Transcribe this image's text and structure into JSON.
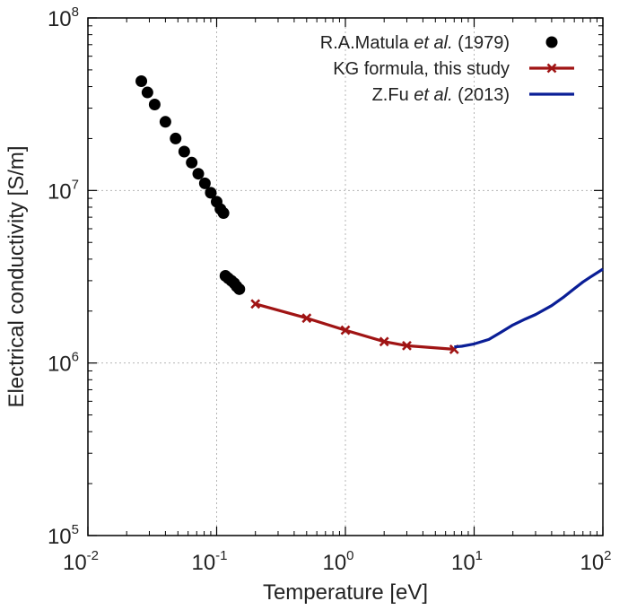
{
  "chart_data": {
    "type": "scatter",
    "title": "",
    "xlabel": "Temperature [eV]",
    "ylabel": "Electrical conductivity [S/m]",
    "xscale": "log",
    "yscale": "log",
    "xlim": [
      0.01,
      100
    ],
    "ylim": [
      100000,
      100000000
    ],
    "grid": true,
    "legend_position": "top-right",
    "x_ticks": [
      {
        "base": "10",
        "exp": "-2",
        "value": 0.01
      },
      {
        "base": "10",
        "exp": "-1",
        "value": 0.1
      },
      {
        "base": "10",
        "exp": "0",
        "value": 1
      },
      {
        "base": "10",
        "exp": "1",
        "value": 10
      },
      {
        "base": "10",
        "exp": "2",
        "value": 100
      }
    ],
    "y_ticks": [
      {
        "base": "10",
        "exp": "5",
        "value": 100000
      },
      {
        "base": "10",
        "exp": "6",
        "value": 1000000
      },
      {
        "base": "10",
        "exp": "7",
        "value": 10000000
      },
      {
        "base": "10",
        "exp": "8",
        "value": 100000000
      }
    ],
    "series": [
      {
        "name": "R.A.Matula et al. (1979)",
        "legend_parts": [
          {
            "text": "R.A.Matula ",
            "italic": false
          },
          {
            "text": "et al.",
            "italic": true
          },
          {
            "text": " (1979)",
            "italic": false
          }
        ],
        "style": "points",
        "color": "#000000",
        "x": [
          0.026,
          0.029,
          0.033,
          0.04,
          0.048,
          0.056,
          0.064,
          0.072,
          0.081,
          0.09,
          0.1,
          0.107,
          0.113,
          0.117,
          0.123,
          0.13,
          0.137,
          0.143,
          0.15
        ],
        "y": [
          43000000,
          37000000,
          31500000,
          25000000,
          20000000,
          16800000,
          14500000,
          12500000,
          11000000,
          9700000,
          8600000,
          7800000,
          7400000,
          3200000,
          3100000,
          3000000,
          2900000,
          2780000,
          2680000
        ]
      },
      {
        "name": "KG formula, this study",
        "legend_parts": [
          {
            "text": "KG formula, this study",
            "italic": false
          }
        ],
        "style": "line-x-markers",
        "color": "#a01414",
        "x": [
          0.2,
          0.5,
          1,
          2,
          3,
          7
        ],
        "y": [
          2200000,
          1820000,
          1550000,
          1330000,
          1260000,
          1200000
        ]
      },
      {
        "name": "Z.Fu et al. (2013)",
        "legend_parts": [
          {
            "text": "Z.Fu ",
            "italic": false
          },
          {
            "text": "et al.",
            "italic": true
          },
          {
            "text": " (2013)",
            "italic": false
          }
        ],
        "style": "line",
        "color": "#0a1e96",
        "x": [
          7,
          8,
          10,
          13,
          16,
          20,
          25,
          30,
          40,
          50,
          60,
          70,
          80,
          100
        ],
        "y": [
          1240000,
          1250000,
          1290000,
          1370000,
          1500000,
          1660000,
          1800000,
          1910000,
          2150000,
          2420000,
          2700000,
          2950000,
          3150000,
          3500000
        ]
      }
    ]
  }
}
